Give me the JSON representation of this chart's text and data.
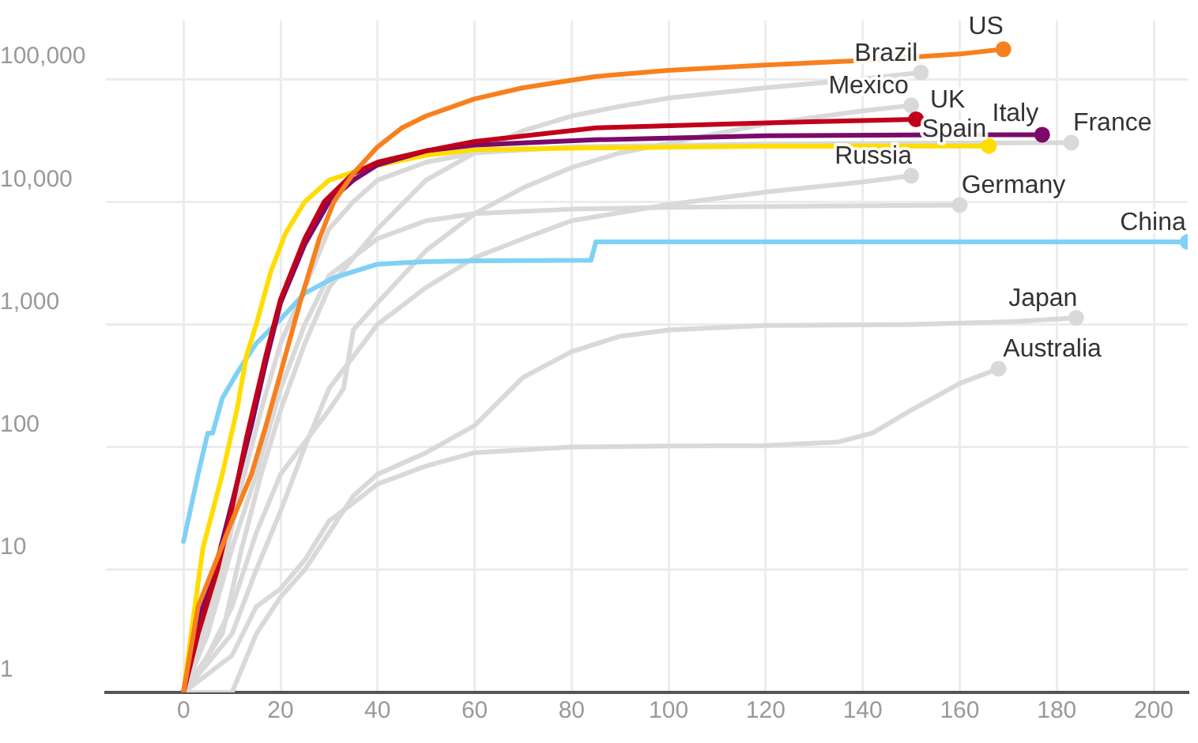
{
  "chart_data": {
    "type": "line",
    "log": "y",
    "grid": true,
    "legend": false,
    "line_style": "solid",
    "xlim": [
      -16,
      207
    ],
    "xticks": [
      0,
      20,
      40,
      60,
      80,
      100,
      120,
      140,
      160,
      180,
      200
    ],
    "ylim": [
      1,
      300000
    ],
    "yticks": [
      1,
      10,
      100,
      {
        "value": 1000,
        "label": "1,000"
      },
      {
        "value": 10000,
        "label": "10,000"
      },
      {
        "value": 100000,
        "label": "100,000"
      }
    ],
    "series": [
      {
        "name": "Brazil",
        "color": "#d9d9d9",
        "x": [
          0,
          8,
          12,
          16,
          20,
          25,
          30,
          40,
          50,
          60,
          70,
          80,
          90,
          100,
          120,
          140,
          152
        ],
        "values": [
          1,
          3,
          15,
          60,
          200,
          700,
          2000,
          6000,
          15000,
          25000,
          38000,
          50000,
          60000,
          70000,
          85000,
          100000,
          113000
        ]
      },
      {
        "name": "Mexico",
        "color": "#d9d9d9",
        "x": [
          0,
          5,
          10,
          15,
          20,
          30,
          33,
          35,
          40,
          50,
          60,
          70,
          80,
          90,
          100,
          120,
          140,
          150
        ],
        "values": [
          1,
          2,
          5,
          20,
          60,
          200,
          300,
          900,
          1500,
          4000,
          8000,
          13000,
          19000,
          25000,
          30000,
          43000,
          55000,
          61000
        ]
      },
      {
        "name": "France",
        "color": "#d9d9d9",
        "x": [
          0,
          4,
          8,
          12,
          16,
          20,
          25,
          30,
          35,
          40,
          50,
          60,
          80,
          120,
          150,
          183
        ],
        "values": [
          1,
          3,
          10,
          50,
          200,
          700,
          2000,
          6000,
          10000,
          15000,
          21000,
          25000,
          28000,
          29500,
          30000,
          30300
        ]
      },
      {
        "name": "Russia",
        "color": "#d9d9d9",
        "x": [
          0,
          10,
          15,
          20,
          25,
          30,
          40,
          50,
          60,
          70,
          80,
          100,
          120,
          140,
          150
        ],
        "values": [
          1,
          3,
          10,
          30,
          100,
          300,
          1000,
          2000,
          3500,
          5000,
          7000,
          9500,
          12000,
          14500,
          16300
        ]
      },
      {
        "name": "Germany",
        "color": "#d9d9d9",
        "x": [
          0,
          5,
          10,
          15,
          20,
          25,
          30,
          40,
          50,
          60,
          80,
          100,
          130,
          160
        ],
        "values": [
          1,
          3,
          15,
          60,
          300,
          1000,
          2500,
          5000,
          7000,
          8000,
          8700,
          9000,
          9200,
          9400
        ]
      },
      {
        "name": "Japan",
        "color": "#d9d9d9",
        "x": [
          0,
          10,
          15,
          20,
          25,
          30,
          35,
          40,
          50,
          60,
          70,
          80,
          90,
          100,
          120,
          150,
          170,
          184
        ],
        "values": [
          1,
          1,
          3,
          6,
          10,
          20,
          40,
          60,
          90,
          150,
          370,
          600,
          800,
          900,
          980,
          1000,
          1050,
          1130
        ]
      },
      {
        "name": "Australia",
        "color": "#d9d9d9",
        "x": [
          0,
          10,
          15,
          20,
          25,
          30,
          35,
          40,
          50,
          60,
          80,
          100,
          120,
          135,
          142,
          150,
          160,
          168
        ],
        "values": [
          1,
          2,
          5,
          7,
          12,
          25,
          35,
          50,
          70,
          90,
          100,
          102,
          103,
          110,
          130,
          200,
          330,
          436
        ]
      },
      {
        "name": "China",
        "color": "#7fd1f5",
        "x": [
          0,
          3,
          5,
          6,
          8,
          11,
          15,
          20,
          25,
          31,
          40,
          50,
          60,
          84,
          85,
          207
        ],
        "values": [
          17,
          60,
          130,
          130,
          250,
          400,
          700,
          1100,
          1800,
          2400,
          3100,
          3250,
          3300,
          3340,
          4700,
          4700
        ]
      },
      {
        "name": "Spain",
        "color": "#ffdd00",
        "x": [
          0,
          2,
          4,
          8,
          11,
          13,
          15,
          18,
          21,
          25,
          30,
          38,
          50,
          60,
          85,
          120,
          166
        ],
        "values": [
          1,
          4,
          15,
          60,
          200,
          560,
          1000,
          2700,
          5500,
          10000,
          15000,
          19000,
          24000,
          26500,
          27500,
          28300,
          28500
        ]
      },
      {
        "name": "Italy",
        "color": "#7b0a6b",
        "x": [
          0,
          3,
          7,
          10,
          14,
          17,
          20,
          25,
          30,
          35,
          40,
          50,
          60,
          85,
          120,
          150,
          177
        ],
        "values": [
          1,
          4,
          12,
          35,
          150,
          500,
          1500,
          4500,
          10000,
          15000,
          20000,
          26000,
          29000,
          32000,
          34500,
          35000,
          35200
        ]
      },
      {
        "name": "UK",
        "color": "#c0001a",
        "x": [
          0,
          3,
          7,
          10,
          13,
          17,
          20,
          25,
          29,
          35,
          40,
          50,
          60,
          85,
          120,
          151
        ],
        "values": [
          1,
          3,
          10,
          32,
          120,
          560,
          1600,
          5000,
          10000,
          17000,
          21000,
          26000,
          31000,
          40000,
          44000,
          47000
        ]
      },
      {
        "name": "US",
        "color": "#f7801e",
        "x": [
          0,
          3,
          6,
          10,
          14,
          17,
          20,
          24,
          28,
          31,
          35,
          40,
          45,
          50,
          60,
          70,
          85,
          100,
          120,
          140,
          160,
          169
        ],
        "values": [
          1,
          5,
          10,
          25,
          60,
          150,
          400,
          1500,
          5000,
          10000,
          17000,
          28000,
          40000,
          50000,
          69000,
          85000,
          105000,
          118000,
          130000,
          142000,
          160000,
          175000
        ]
      }
    ]
  }
}
